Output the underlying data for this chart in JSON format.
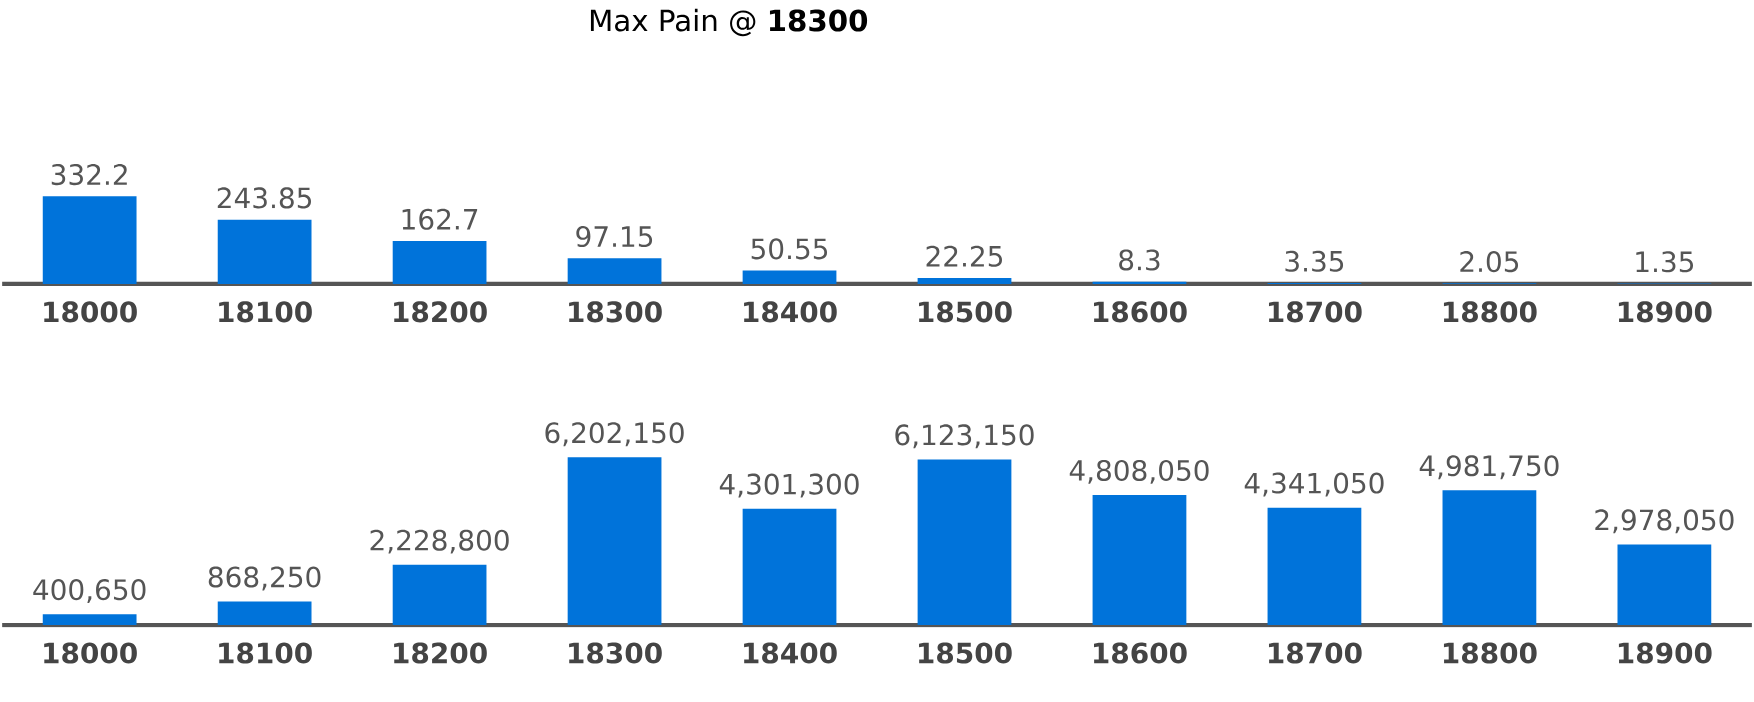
{
  "chart_data": [
    {
      "type": "bar",
      "title": "Max Pain @ **18300**",
      "categories": [
        "18000",
        "18100",
        "18200",
        "18300",
        "18400",
        "18500",
        "18600",
        "18700",
        "18800",
        "18900"
      ],
      "values": [
        332.2,
        243.85,
        162.7,
        97.15,
        50.55,
        22.25,
        8.3,
        3.35,
        2.05,
        1.35
      ],
      "value_labels": [
        "332.2",
        "243.85",
        "162.7",
        "97.15",
        "50.55",
        "22.25",
        "8.3",
        "3.35",
        "2.05",
        "1.35"
      ],
      "color": "#0073da",
      "tick_labels": "x"
    },
    {
      "type": "bar",
      "categories": [
        "18000",
        "18100",
        "18200",
        "18300",
        "18400",
        "18500",
        "18600",
        "18700",
        "18800",
        "18900"
      ],
      "values": [
        400650,
        868250,
        2228800,
        6202150,
        4301300,
        6123150,
        4808050,
        4341050,
        4981750,
        2978050
      ],
      "value_labels": [
        "400,650",
        "868,250",
        "2,228,800",
        "6,202,150",
        "4,301,300",
        "6,123,150",
        "4,808,050",
        "4,341,050",
        "4,981,750",
        "2,978,050"
      ],
      "color": "#0073da",
      "tick_labels": "x"
    }
  ]
}
